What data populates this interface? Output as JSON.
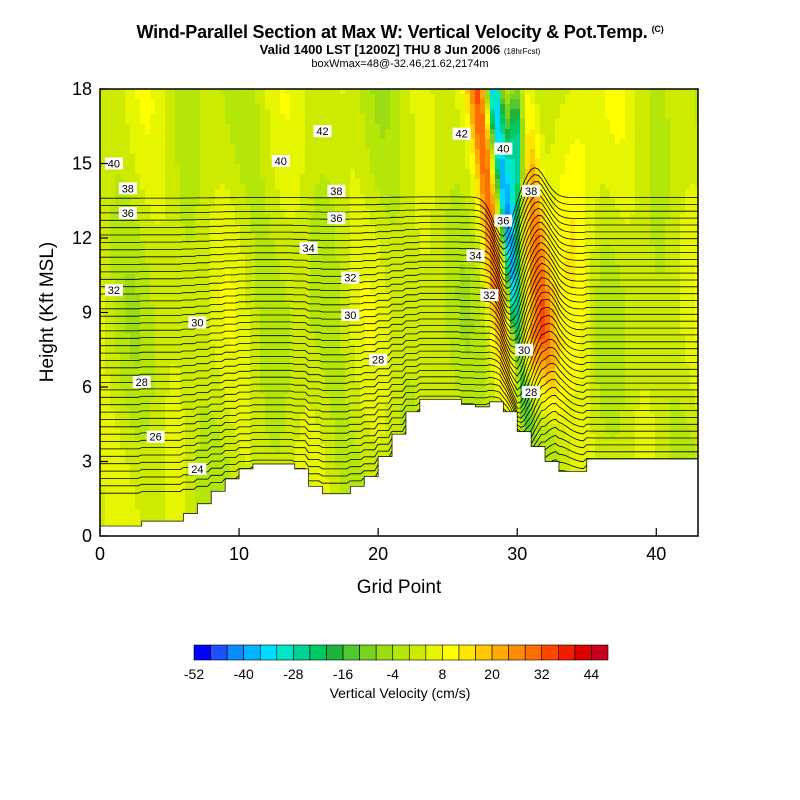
{
  "header": {
    "title": "Wind-Parallel Section at Max W: Vertical Velocity & Pot.Temp.",
    "copyright": "(C)",
    "valid_line": "Valid 1400 LST [1200Z] THU 8 Jun 2006",
    "forecast_tag": "(18hrFcst)",
    "box_line": "boxWmax=48@-32.46,21.62,2174m"
  },
  "chart_data": {
    "type": "heatmap",
    "title": "Wind-Parallel Section at Max W: Vertical Velocity & Pot.Temp.",
    "xlabel": "Grid Point",
    "ylabel": "Height (Kft MSL)",
    "xlim": [
      0,
      43
    ],
    "ylim": [
      0,
      18
    ],
    "x_ticks": [
      0,
      10,
      20,
      30,
      40
    ],
    "y_ticks": [
      0,
      3,
      6,
      9,
      12,
      15,
      18
    ],
    "colorbar": {
      "label": "Vertical Velocity (cm/s)",
      "tick_labels": [
        "-52",
        "-40",
        "-28",
        "-16",
        "-4",
        "8",
        "20",
        "32",
        "44"
      ],
      "tick_values": [
        -52,
        -40,
        -28,
        -16,
        -4,
        8,
        20,
        32,
        44
      ],
      "levels": [
        -52,
        -48,
        -44,
        -40,
        -36,
        -32,
        -28,
        -24,
        -20,
        -16,
        -12,
        -8,
        -4,
        0,
        4,
        8,
        12,
        16,
        20,
        24,
        28,
        32,
        36,
        40,
        44,
        48
      ],
      "colors": [
        "#0000ff",
        "#1e50ff",
        "#0a8cff",
        "#00b4ff",
        "#00dcff",
        "#00e6c8",
        "#00d296",
        "#00c864",
        "#1eb43c",
        "#50c832",
        "#78d21e",
        "#9bdc14",
        "#b4e60a",
        "#cdeb00",
        "#e6f500",
        "#ffff00",
        "#ffe600",
        "#ffc800",
        "#ffaa00",
        "#ff8c00",
        "#ff6e00",
        "#ff4600",
        "#f01e00",
        "#dc0000",
        "#c8001e"
      ]
    },
    "updraft_core": {
      "grid_point": 30.5,
      "height_kft": 7,
      "w_cm_s": 48
    },
    "downdraft_core": {
      "grid_point": 30,
      "height_kft": 16,
      "w_cm_s": -52
    },
    "theta_contours": [
      {
        "value": 24,
        "label": "24",
        "label_x": 7,
        "label_y": 2.7
      },
      {
        "value": 26,
        "label": "26",
        "label_x": 4,
        "label_y": 4.0
      },
      {
        "value": 28,
        "label": "28",
        "label_x": 3,
        "label_y": 6.2
      },
      {
        "value": 28,
        "label": "28",
        "label_x": 20,
        "label_y": 7.1
      },
      {
        "value": 28,
        "label": "28",
        "label_x": 31,
        "label_y": 5.8
      },
      {
        "value": 30,
        "label": "30",
        "label_x": 7,
        "label_y": 8.6
      },
      {
        "value": 30,
        "label": "30",
        "label_x": 18,
        "label_y": 8.9
      },
      {
        "value": 30,
        "label": "30",
        "label_x": 30.5,
        "label_y": 7.5
      },
      {
        "value": 32,
        "label": "32",
        "label_x": 1,
        "label_y": 9.9
      },
      {
        "value": 32,
        "label": "32",
        "label_x": 18,
        "label_y": 10.4
      },
      {
        "value": 32,
        "label": "32",
        "label_x": 28,
        "label_y": 9.7
      },
      {
        "value": 34,
        "label": "34",
        "label_x": 15,
        "label_y": 11.6
      },
      {
        "value": 34,
        "label": "34",
        "label_x": 27,
        "label_y": 11.3
      },
      {
        "value": 36,
        "label": "36",
        "label_x": 2,
        "label_y": 13.0
      },
      {
        "value": 36,
        "label": "36",
        "label_x": 17,
        "label_y": 12.8
      },
      {
        "value": 36,
        "label": "36",
        "label_x": 29,
        "label_y": 12.7
      },
      {
        "value": 38,
        "label": "38",
        "label_x": 2,
        "label_y": 14.0
      },
      {
        "value": 38,
        "label": "38",
        "label_x": 17,
        "label_y": 13.9
      },
      {
        "value": 38,
        "label": "38",
        "label_x": 31,
        "label_y": 13.9
      },
      {
        "value": 40,
        "label": "40",
        "label_x": 1,
        "label_y": 15.0
      },
      {
        "value": 40,
        "label": "40",
        "label_x": 13,
        "label_y": 15.1
      },
      {
        "value": 40,
        "label": "40",
        "label_x": 29,
        "label_y": 15.6
      },
      {
        "value": 42,
        "label": "42",
        "label_x": 16,
        "label_y": 16.3
      },
      {
        "value": 42,
        "label": "42",
        "label_x": 26,
        "label_y": 16.2
      }
    ],
    "terrain_kft": [
      0.4,
      0.4,
      0.4,
      0.6,
      0.6,
      0.6,
      0.9,
      1.3,
      1.8,
      2.3,
      2.7,
      2.9,
      2.9,
      2.9,
      2.7,
      2.0,
      1.7,
      1.7,
      2.0,
      2.4,
      3.2,
      4.1,
      5.0,
      5.5,
      5.5,
      5.5,
      5.3,
      5.2,
      5.4,
      5.0,
      4.2,
      3.6,
      3.0,
      2.6,
      2.6,
      3.1,
      3.1,
      3.1,
      3.1,
      3.1,
      3.1,
      3.1,
      3.1,
      3.1
    ]
  }
}
